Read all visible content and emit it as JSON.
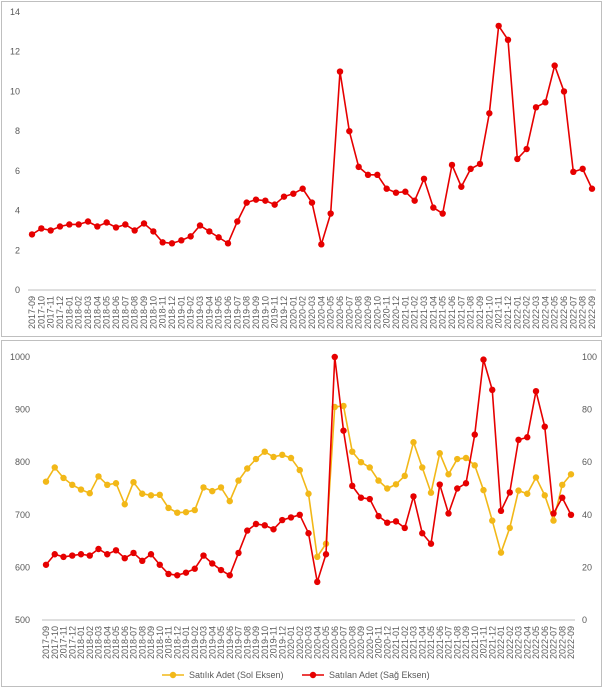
{
  "chart_data": [
    {
      "type": "line",
      "title": "",
      "xlabel": "",
      "ylabel": "",
      "ylim": [
        0,
        14
      ],
      "yticks": [
        0,
        2,
        4,
        6,
        8,
        10,
        12,
        14
      ],
      "grid": "none",
      "colors": {
        "line": "#e60000"
      },
      "series": [
        {
          "values": [
            2.8,
            3.1,
            3.0,
            3.2,
            3.3,
            3.3,
            3.45,
            3.2,
            3.4,
            3.15,
            3.3,
            3.0,
            3.35,
            2.95,
            2.4,
            2.35,
            2.5,
            2.7,
            3.25,
            2.95,
            2.65,
            2.35,
            3.45,
            4.4,
            4.55,
            4.5,
            4.3,
            4.7,
            4.85,
            5.1,
            4.4,
            2.3,
            3.85,
            11.0,
            8.0,
            6.2,
            5.8,
            5.8,
            5.1,
            4.9,
            4.95,
            4.5,
            5.6,
            4.15,
            3.85,
            6.3,
            5.2,
            6.1,
            6.35,
            8.9,
            13.3,
            12.6,
            6.6,
            7.1,
            9.2,
            9.45,
            11.3,
            10.0,
            5.95,
            6.1,
            5.1
          ]
        }
      ]
    },
    {
      "type": "line",
      "title": "",
      "xlabel": "",
      "ylabel": "",
      "ylim": [
        500,
        1000
      ],
      "yticks": [
        500,
        600,
        700,
        800,
        900,
        1000
      ],
      "ylim_right": [
        0,
        100
      ],
      "yticks_right": [
        0,
        20,
        40,
        60,
        80,
        100
      ],
      "grid": "none",
      "legend_position": "bottom",
      "series": [
        {
          "name": "Satılık Adet (Sol Eksen)",
          "axis": "left",
          "color": "#f2b818",
          "values": [
            763,
            790,
            770,
            757,
            748,
            741,
            773,
            757,
            760,
            720,
            762,
            740,
            737,
            738,
            713,
            704,
            705,
            709,
            752,
            745,
            752,
            726,
            765,
            788,
            806,
            820,
            810,
            814,
            808,
            785,
            740,
            620,
            645,
            905,
            907,
            820,
            800,
            790,
            765,
            750,
            758,
            774,
            838,
            790,
            742,
            817,
            777,
            806,
            808,
            794,
            747,
            689,
            628,
            675,
            746,
            740,
            771,
            737,
            689,
            757,
            777
          ]
        },
        {
          "name": "Satılan Adet (Sağ Eksen)",
          "axis": "right",
          "color": "#e60000",
          "values": [
            21,
            25,
            24,
            24.5,
            25,
            24.5,
            27,
            25,
            26.5,
            23.5,
            25.5,
            22.5,
            25,
            21,
            17.5,
            17,
            18,
            19.5,
            24.5,
            21.5,
            19,
            17,
            25.5,
            34,
            36.5,
            36,
            34.5,
            38,
            39,
            40,
            33,
            14.5,
            25,
            100,
            72,
            51,
            46.5,
            46,
            39.5,
            37,
            37.5,
            35,
            47,
            33,
            29,
            51.5,
            40.5,
            50,
            52,
            70.5,
            99,
            87.5,
            41.5,
            48.5,
            68.5,
            69.5,
            87,
            73.5,
            40.5,
            46.5,
            40
          ]
        }
      ]
    }
  ],
  "x_labels": [
    "2017-09",
    "2017-10",
    "2017-11",
    "2017-12",
    "2018-01",
    "2018-02",
    "2018-03",
    "2018-04",
    "2018-05",
    "2018-06",
    "2018-07",
    "2018-08",
    "2018-09",
    "2018-10",
    "2018-11",
    "2018-12",
    "2019-01",
    "2019-02",
    "2019-03",
    "2019-04",
    "2019-05",
    "2019-06",
    "2019-07",
    "2019-08",
    "2019-09",
    "2019-10",
    "2019-11",
    "2019-12",
    "2020-01",
    "2020-02",
    "2020-03",
    "2020-04",
    "2020-05",
    "2020-06",
    "2020-07",
    "2020-08",
    "2020-09",
    "2020-10",
    "2020-11",
    "2020-12",
    "2021-01",
    "2021-02",
    "2021-03",
    "2021-04",
    "2021-05",
    "2021-06",
    "2021-07",
    "2021-08",
    "2021-09",
    "2021-10",
    "2021-11",
    "2021-12",
    "2022-01",
    "2022-02",
    "2022-03",
    "2022-04",
    "2022-05",
    "2022-06",
    "2022-07",
    "2022-08",
    "2022-09"
  ]
}
